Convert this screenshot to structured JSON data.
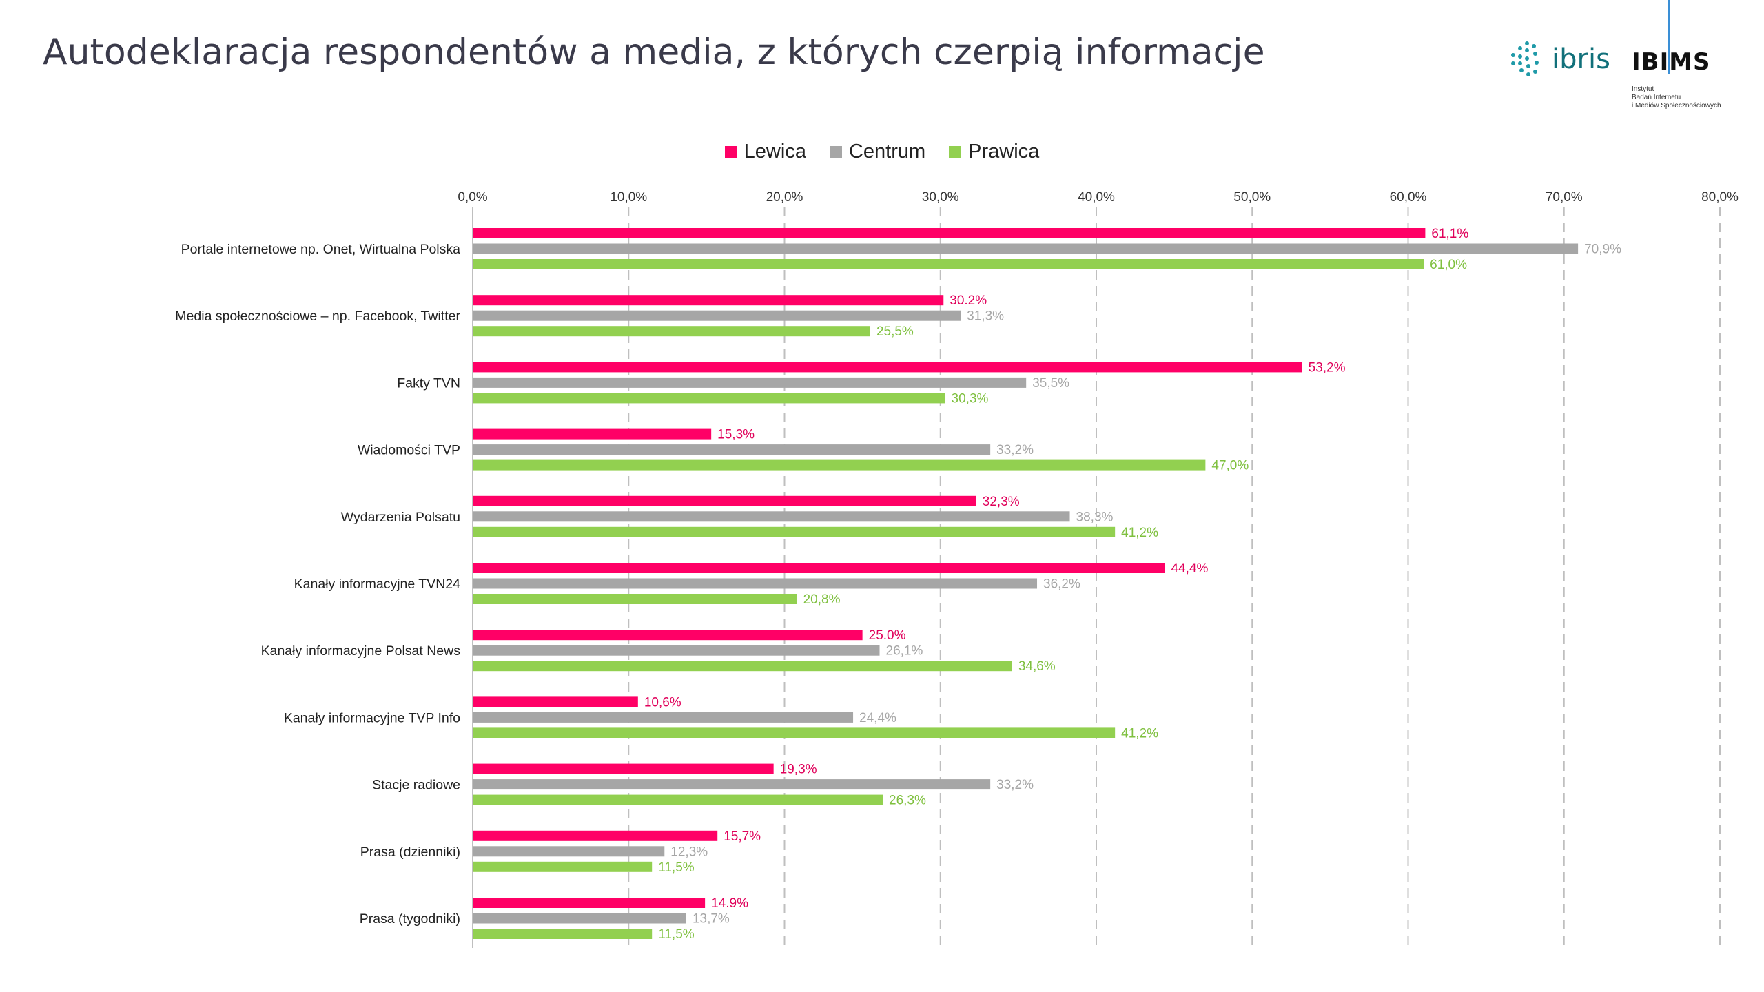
{
  "title": "Autodeklaracja respondentów a media, z których czerpią informacje",
  "logos": {
    "ibris": "ibris",
    "ibims": "IBIMS",
    "ibims_sub": [
      "Instytut",
      "Badań Internetu",
      "i Mediów Społecznościowych"
    ]
  },
  "colors": {
    "Lewica": "#ff0066",
    "Centrum": "#a6a6a6",
    "Prawica": "#92d050",
    "accent": "#3a8fd6",
    "title": "#3a3a4a"
  },
  "legend": [
    {
      "name": "Lewica",
      "color": "#ff0066"
    },
    {
      "name": "Centrum",
      "color": "#a6a6a6"
    },
    {
      "name": "Prawica",
      "color": "#92d050"
    }
  ],
  "chart_data": {
    "type": "bar",
    "orientation": "horizontal",
    "categories": [
      "Portale internetowe np. Onet, Wirtualna Polska",
      "Media społecznościowe  – np. Facebook, Twitter",
      "Fakty TVN",
      "Wiadomości TVP",
      "Wydarzenia Polsatu",
      "Kanały informacyjne TVN24",
      "Kanały informacyjne Polsat News",
      "Kanały informacyjne TVP Info",
      "Stacje radiowe",
      "Prasa (dzienniki)",
      "Prasa (tygodniki)"
    ],
    "series": [
      {
        "name": "Lewica",
        "values": [
          61.1,
          30.2,
          53.2,
          15.3,
          32.3,
          44.4,
          25.0,
          10.6,
          19.3,
          15.7,
          14.9
        ],
        "labels": [
          "61,1%",
          "30.2%",
          "53,2%",
          "15,3%",
          "32,3%",
          "44,4%",
          "25.0%",
          "10,6%",
          "19,3%",
          "15,7%",
          "14.9%"
        ]
      },
      {
        "name": "Centrum",
        "values": [
          70.9,
          31.3,
          35.5,
          33.2,
          38.3,
          36.2,
          26.1,
          24.4,
          33.2,
          12.3,
          13.7
        ],
        "labels": [
          "70,9%",
          "31,3%",
          "35,5%",
          "33,2%",
          "38,3%",
          "36,2%",
          "26,1%",
          "24,4%",
          "33,2%",
          "12,3%",
          "13,7%"
        ]
      },
      {
        "name": "Prawica",
        "values": [
          61.0,
          25.5,
          30.3,
          47.0,
          41.2,
          20.8,
          34.6,
          41.2,
          26.3,
          11.5,
          11.5
        ],
        "labels": [
          "61,0%",
          "25,5%",
          "30,3%",
          "47,0%",
          "41,2%",
          "20,8%",
          "34,6%",
          "41,2%",
          "26,3%",
          "11,5%",
          "11,5%"
        ]
      }
    ],
    "xlim": [
      0,
      80
    ],
    "ticks": [
      "0,0%",
      "10,0%",
      "20,0%",
      "30,0%",
      "40,0%",
      "50,0%",
      "60,0%",
      "70,0%",
      "80,0%"
    ],
    "grid": "vertical dashed",
    "legend": "top-center",
    "xlabel": "",
    "ylabel": ""
  }
}
